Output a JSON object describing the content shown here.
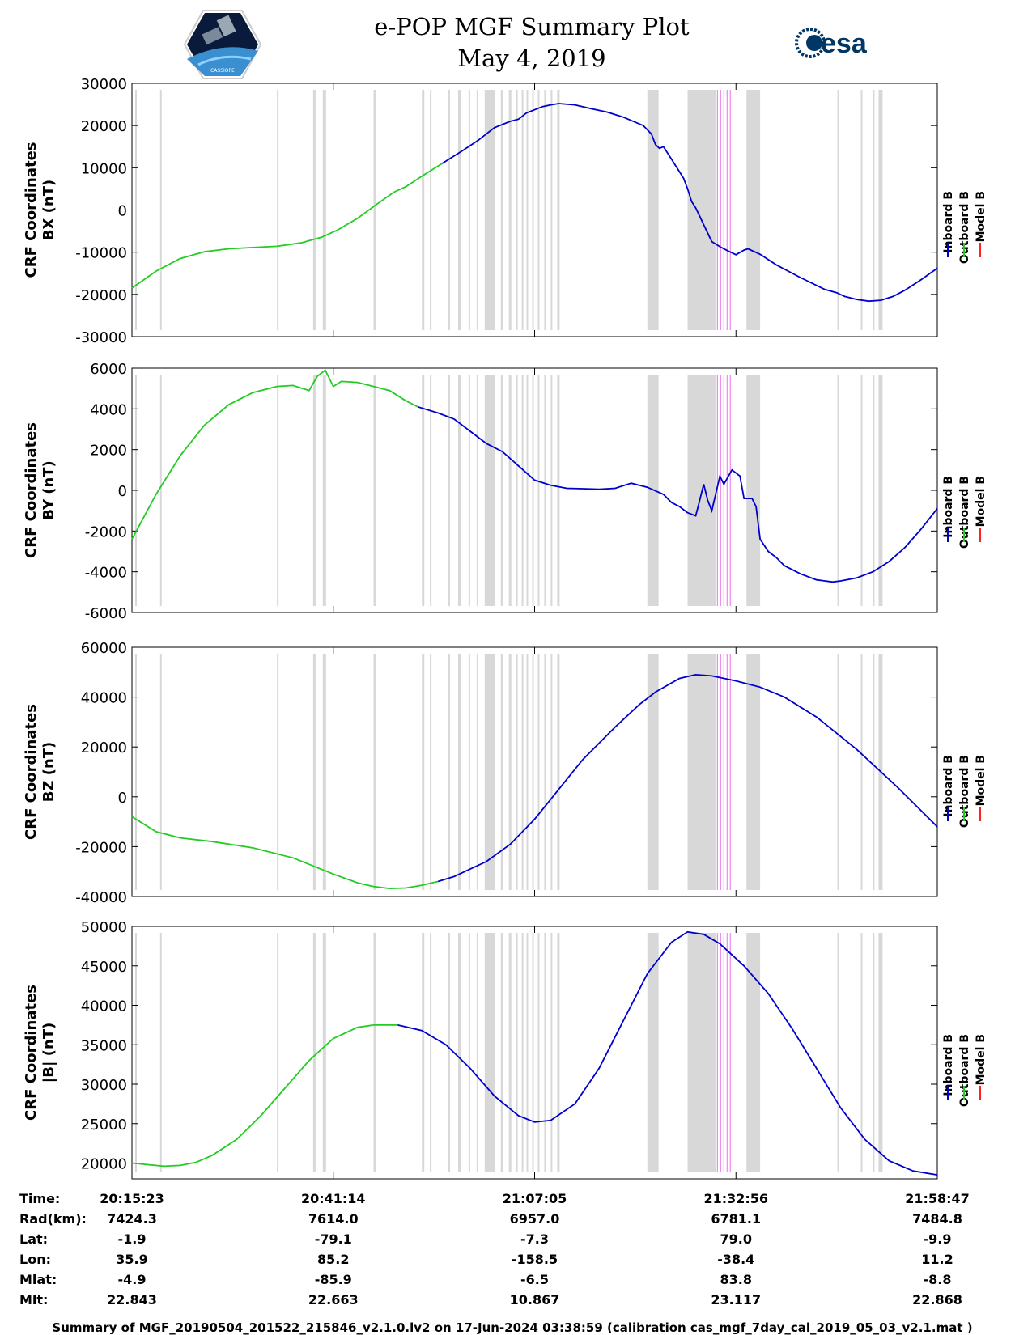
{
  "title": {
    "line1": "e-POP MGF Summary Plot",
    "line2": "May 4, 2019"
  },
  "logos": {
    "left": "CASSIOPE",
    "right": "esa"
  },
  "colors": {
    "inboard": "#0000cc",
    "outboard": "#22cc22",
    "model": "#ff2222",
    "bands": "#d8d8d8",
    "magenta": "#ee88ee"
  },
  "legend": [
    "Inboard B",
    "Outboard B",
    "Model B"
  ],
  "chart_data": [
    {
      "type": "line",
      "ylabel": [
        "CRF Coordinates",
        "BX (nT)"
      ],
      "ylim": [
        -30000,
        30000
      ],
      "yticks": [
        30000,
        20000,
        10000,
        0,
        -10000,
        -20000,
        -30000
      ],
      "xlim": [
        0,
        1
      ],
      "green_end": 0.385,
      "series_points": [
        [
          0,
          -18500
        ],
        [
          0.03,
          -14500
        ],
        [
          0.06,
          -11500
        ],
        [
          0.09,
          -9900
        ],
        [
          0.12,
          -9200
        ],
        [
          0.15,
          -8900
        ],
        [
          0.18,
          -8600
        ],
        [
          0.21,
          -7800
        ],
        [
          0.235,
          -6500
        ],
        [
          0.255,
          -4800
        ],
        [
          0.28,
          -2000
        ],
        [
          0.305,
          1500
        ],
        [
          0.325,
          4200
        ],
        [
          0.34,
          5500
        ],
        [
          0.36,
          8000
        ],
        [
          0.385,
          11000
        ],
        [
          0.41,
          14000
        ],
        [
          0.43,
          16500
        ],
        [
          0.44,
          18000
        ],
        [
          0.45,
          19500
        ],
        [
          0.47,
          21000
        ],
        [
          0.48,
          21500
        ],
        [
          0.49,
          23000
        ],
        [
          0.51,
          24500
        ],
        [
          0.52,
          24900
        ],
        [
          0.53,
          25200
        ],
        [
          0.55,
          24900
        ],
        [
          0.57,
          24000
        ],
        [
          0.59,
          23200
        ],
        [
          0.61,
          22000
        ],
        [
          0.635,
          20000
        ],
        [
          0.645,
          18000
        ],
        [
          0.65,
          15500
        ],
        [
          0.655,
          14600
        ],
        [
          0.66,
          15000
        ],
        [
          0.67,
          12000
        ],
        [
          0.685,
          7500
        ],
        [
          0.69,
          5000
        ],
        [
          0.695,
          2000
        ],
        [
          0.7,
          500
        ],
        [
          0.705,
          -1500
        ],
        [
          0.71,
          -3500
        ],
        [
          0.715,
          -5500
        ],
        [
          0.72,
          -7500
        ],
        [
          0.73,
          -8700
        ],
        [
          0.74,
          -9700
        ],
        [
          0.75,
          -10600
        ],
        [
          0.76,
          -9500
        ],
        [
          0.765,
          -9200
        ],
        [
          0.78,
          -10500
        ],
        [
          0.8,
          -13000
        ],
        [
          0.83,
          -16000
        ],
        [
          0.86,
          -18800
        ],
        [
          0.875,
          -19600
        ],
        [
          0.885,
          -20500
        ],
        [
          0.9,
          -21200
        ],
        [
          0.915,
          -21600
        ],
        [
          0.93,
          -21400
        ],
        [
          0.945,
          -20500
        ],
        [
          0.96,
          -19000
        ],
        [
          0.98,
          -16500
        ],
        [
          1.0,
          -13800
        ]
      ]
    },
    {
      "type": "line",
      "ylabel": [
        "CRF Coordinates",
        "BY (nT)"
      ],
      "ylim": [
        -6000,
        6000
      ],
      "yticks": [
        6000,
        4000,
        2000,
        0,
        -2000,
        -4000,
        -6000
      ],
      "xlim": [
        0,
        1
      ],
      "green_end": 0.355,
      "series_points": [
        [
          0,
          -2400
        ],
        [
          0.03,
          -200
        ],
        [
          0.06,
          1700
        ],
        [
          0.09,
          3200
        ],
        [
          0.12,
          4200
        ],
        [
          0.15,
          4800
        ],
        [
          0.18,
          5100
        ],
        [
          0.2,
          5150
        ],
        [
          0.22,
          4900
        ],
        [
          0.23,
          5600
        ],
        [
          0.24,
          5900
        ],
        [
          0.25,
          5100
        ],
        [
          0.26,
          5350
        ],
        [
          0.28,
          5300
        ],
        [
          0.3,
          5100
        ],
        [
          0.32,
          4900
        ],
        [
          0.34,
          4400
        ],
        [
          0.355,
          4100
        ],
        [
          0.38,
          3800
        ],
        [
          0.4,
          3500
        ],
        [
          0.42,
          2900
        ],
        [
          0.44,
          2300
        ],
        [
          0.46,
          1900
        ],
        [
          0.48,
          1200
        ],
        [
          0.5,
          500
        ],
        [
          0.52,
          250
        ],
        [
          0.54,
          100
        ],
        [
          0.56,
          80
        ],
        [
          0.58,
          50
        ],
        [
          0.6,
          100
        ],
        [
          0.62,
          350
        ],
        [
          0.64,
          150
        ],
        [
          0.66,
          -200
        ],
        [
          0.67,
          -600
        ],
        [
          0.68,
          -800
        ],
        [
          0.69,
          -1100
        ],
        [
          0.7,
          -1250
        ],
        [
          0.703,
          -800
        ],
        [
          0.71,
          300
        ],
        [
          0.715,
          -500
        ],
        [
          0.72,
          -1000
        ],
        [
          0.73,
          700
        ],
        [
          0.735,
          300
        ],
        [
          0.745,
          1000
        ],
        [
          0.755,
          700
        ],
        [
          0.76,
          -400
        ],
        [
          0.77,
          -400
        ],
        [
          0.775,
          -800
        ],
        [
          0.78,
          -2400
        ],
        [
          0.79,
          -3000
        ],
        [
          0.8,
          -3300
        ],
        [
          0.81,
          -3700
        ],
        [
          0.83,
          -4100
        ],
        [
          0.85,
          -4400
        ],
        [
          0.87,
          -4500
        ],
        [
          0.88,
          -4450
        ],
        [
          0.9,
          -4300
        ],
        [
          0.92,
          -4000
        ],
        [
          0.94,
          -3500
        ],
        [
          0.96,
          -2800
        ],
        [
          0.98,
          -1900
        ],
        [
          1.0,
          -900
        ]
      ]
    },
    {
      "type": "line",
      "ylabel": [
        "CRF Coordinates",
        "BZ (nT)"
      ],
      "ylim": [
        -40000,
        60000
      ],
      "yticks": [
        60000,
        40000,
        20000,
        0,
        -20000,
        -40000
      ],
      "xlim": [
        0,
        1
      ],
      "green_end": 0.38,
      "series_points": [
        [
          0,
          -8000
        ],
        [
          0.03,
          -14000
        ],
        [
          0.06,
          -16500
        ],
        [
          0.1,
          -18000
        ],
        [
          0.15,
          -20500
        ],
        [
          0.2,
          -24500
        ],
        [
          0.25,
          -31000
        ],
        [
          0.28,
          -34500
        ],
        [
          0.3,
          -36000
        ],
        [
          0.32,
          -36800
        ],
        [
          0.34,
          -36600
        ],
        [
          0.36,
          -35500
        ],
        [
          0.38,
          -34000
        ],
        [
          0.4,
          -32000
        ],
        [
          0.42,
          -29000
        ],
        [
          0.44,
          -26000
        ],
        [
          0.47,
          -19000
        ],
        [
          0.5,
          -9000
        ],
        [
          0.52,
          -1000
        ],
        [
          0.54,
          7000
        ],
        [
          0.56,
          15000
        ],
        [
          0.6,
          28000
        ],
        [
          0.63,
          37000
        ],
        [
          0.65,
          42000
        ],
        [
          0.68,
          47500
        ],
        [
          0.7,
          49000
        ],
        [
          0.72,
          48500
        ],
        [
          0.75,
          46500
        ],
        [
          0.78,
          44000
        ],
        [
          0.81,
          40000
        ],
        [
          0.85,
          32000
        ],
        [
          0.9,
          19000
        ],
        [
          0.95,
          4000
        ],
        [
          1.0,
          -12000
        ]
      ]
    },
    {
      "type": "line",
      "ylabel": [
        "CRF Coordinates",
        "|B| (nT)"
      ],
      "ylim": [
        18000,
        50000
      ],
      "yticks": [
        50000,
        45000,
        40000,
        35000,
        30000,
        25000,
        20000
      ],
      "xlim": [
        0,
        1
      ],
      "green_end": 0.33,
      "series_points": [
        [
          0,
          20000
        ],
        [
          0.02,
          19800
        ],
        [
          0.04,
          19600
        ],
        [
          0.06,
          19700
        ],
        [
          0.08,
          20100
        ],
        [
          0.1,
          21000
        ],
        [
          0.13,
          23000
        ],
        [
          0.16,
          26000
        ],
        [
          0.19,
          29500
        ],
        [
          0.22,
          33000
        ],
        [
          0.25,
          35800
        ],
        [
          0.28,
          37200
        ],
        [
          0.3,
          37500
        ],
        [
          0.33,
          37500
        ],
        [
          0.36,
          36800
        ],
        [
          0.39,
          35000
        ],
        [
          0.42,
          32000
        ],
        [
          0.45,
          28500
        ],
        [
          0.48,
          26000
        ],
        [
          0.5,
          25200
        ],
        [
          0.52,
          25400
        ],
        [
          0.55,
          27500
        ],
        [
          0.58,
          32000
        ],
        [
          0.61,
          38000
        ],
        [
          0.64,
          44000
        ],
        [
          0.67,
          48000
        ],
        [
          0.69,
          49300
        ],
        [
          0.71,
          49000
        ],
        [
          0.73,
          47800
        ],
        [
          0.76,
          45000
        ],
        [
          0.79,
          41500
        ],
        [
          0.82,
          37000
        ],
        [
          0.85,
          32000
        ],
        [
          0.88,
          27000
        ],
        [
          0.91,
          23000
        ],
        [
          0.94,
          20300
        ],
        [
          0.97,
          19000
        ],
        [
          1.0,
          18500
        ]
      ]
    }
  ],
  "bands": [
    [
      0.004,
      0.006
    ],
    [
      0.035,
      0.037
    ],
    [
      0.18,
      0.182
    ],
    [
      0.225,
      0.228
    ],
    [
      0.237,
      0.241
    ],
    [
      0.3,
      0.303
    ],
    [
      0.36,
      0.363
    ],
    [
      0.37,
      0.372
    ],
    [
      0.392,
      0.395
    ],
    [
      0.405,
      0.408
    ],
    [
      0.418,
      0.42
    ],
    [
      0.428,
      0.43
    ],
    [
      0.438,
      0.451
    ],
    [
      0.458,
      0.461
    ],
    [
      0.468,
      0.471
    ],
    [
      0.477,
      0.479
    ],
    [
      0.484,
      0.486
    ],
    [
      0.49,
      0.492
    ],
    [
      0.497,
      0.499
    ],
    [
      0.504,
      0.506
    ],
    [
      0.512,
      0.514
    ],
    [
      0.52,
      0.522
    ],
    [
      0.528,
      0.531
    ],
    [
      0.64,
      0.654
    ],
    [
      0.69,
      0.725
    ],
    [
      0.763,
      0.78
    ],
    [
      0.876,
      0.878
    ],
    [
      0.905,
      0.907
    ],
    [
      0.92,
      0.922
    ],
    [
      0.927,
      0.932
    ]
  ],
  "magenta_lines": [
    0.727,
    0.731,
    0.735,
    0.739,
    0.743
  ],
  "info": {
    "row_labels": [
      "Time:",
      "Rad(km):",
      "Lat:",
      "Lon:",
      "Mlat:",
      "Mlt:"
    ],
    "columns": [
      [
        "20:15:23",
        "7424.3",
        "-1.9",
        "35.9",
        "-4.9",
        "22.843"
      ],
      [
        "20:41:14",
        "7614.0",
        "-79.1",
        "85.2",
        "-85.9",
        "22.663"
      ],
      [
        "21:07:05",
        "6957.0",
        "-7.3",
        "-158.5",
        "-6.5",
        "10.867"
      ],
      [
        "21:32:56",
        "6781.1",
        "79.0",
        "-38.4",
        "83.8",
        "23.117"
      ],
      [
        "21:58:47",
        "7484.8",
        "-9.9",
        "11.2",
        "-8.8",
        "22.868"
      ]
    ]
  },
  "footer": "Summary of MGF_20190504_201522_215846_v2.1.0.lv2 on 17-Jun-2024 03:38:59 (calibration cas_mgf_7day_cal_2019_05_03_v2.1.mat )"
}
